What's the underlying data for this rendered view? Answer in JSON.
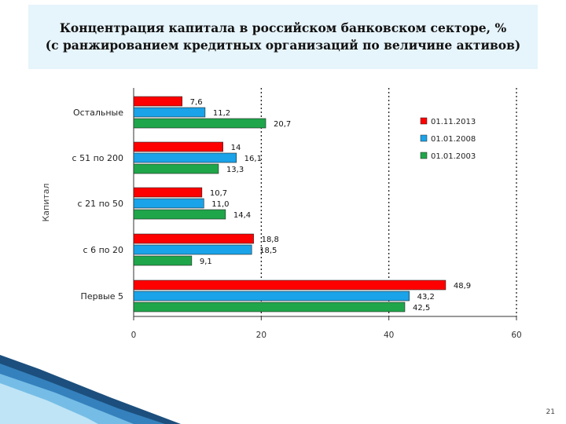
{
  "header": {
    "title_line1": "Концентрация капитала в российском банковском секторе, %",
    "title_line2": "(с ранжированием кредитных организаций по величине активов)"
  },
  "page_number": "21",
  "chart_data": {
    "type": "bar",
    "orientation": "horizontal",
    "categories": [
      "Остальные",
      "с 51 по 200",
      "с 21 по 50",
      "с 6 по 20",
      "Первые 5"
    ],
    "series": [
      {
        "name": "01.11.2013",
        "color": "#ff0000",
        "values": [
          7.6,
          14,
          10.7,
          18.8,
          48.9
        ]
      },
      {
        "name": "01.01.2008",
        "color": "#1aa3e8",
        "values": [
          11.2,
          16.1,
          11.0,
          18.5,
          43.2
        ]
      },
      {
        "name": "01.01.2003",
        "color": "#1fa64a",
        "values": [
          20.7,
          13.3,
          14.4,
          9.1,
          42.5
        ]
      }
    ],
    "value_labels": [
      [
        "7,6",
        "14",
        "10,7",
        "18,8",
        "48,9"
      ],
      [
        "11,2",
        "16,1",
        "11,0",
        "18,5",
        "43,2"
      ],
      [
        "20,7",
        "13,3",
        "14,4",
        "9,1",
        "42,5"
      ]
    ],
    "ylabel": "Капитал",
    "xlabel": "",
    "xlim": [
      0,
      60
    ],
    "xticks": [
      0,
      20,
      40,
      60
    ],
    "grid": "vertical",
    "legend_position": "top-right"
  }
}
